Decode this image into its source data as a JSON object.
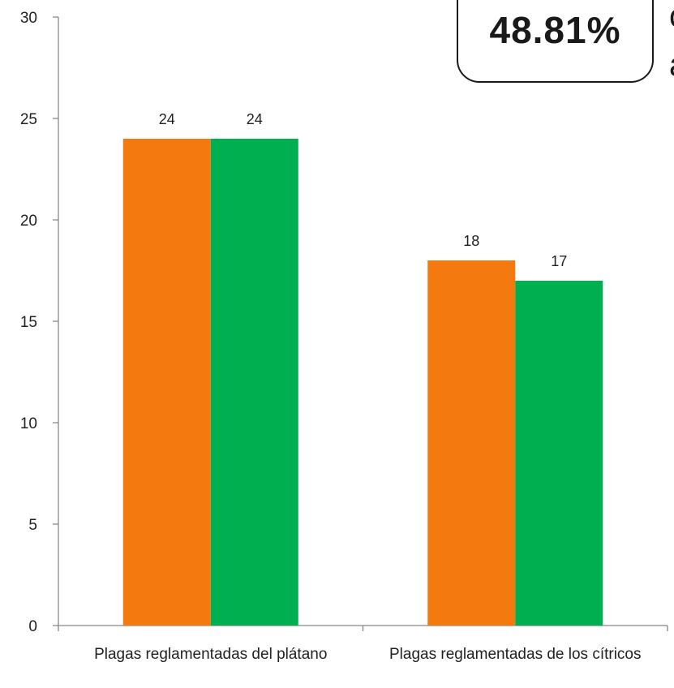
{
  "chart_data": {
    "type": "bar",
    "categories": [
      "Plagas reglamentadas del plátano",
      "Plagas reglamentadas de los cítricos"
    ],
    "series": [
      {
        "color": "#f47a10",
        "values": [
          24,
          18
        ]
      },
      {
        "color": "#00b050",
        "values": [
          24,
          17
        ]
      }
    ],
    "ylim": [
      0,
      30
    ],
    "yticks": [
      0,
      5,
      10,
      15,
      20,
      25,
      30
    ],
    "title": "",
    "xlabel": "",
    "ylabel": "",
    "grid": false,
    "legend": "none"
  },
  "callout": {
    "value": "48.81%"
  },
  "side_text": {
    "line1": "c",
    "line2": "a"
  }
}
